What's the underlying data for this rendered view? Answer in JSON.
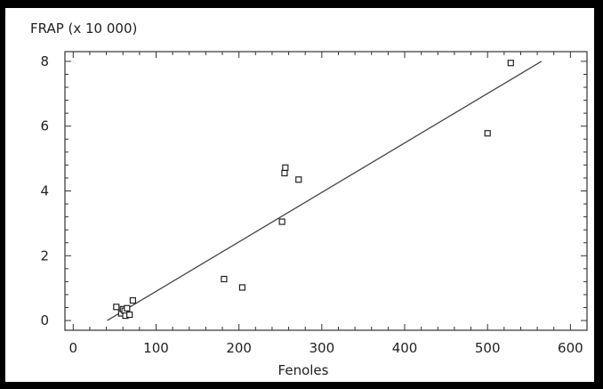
{
  "chart_data": {
    "type": "scatter",
    "title": "",
    "ylabel": "FRAP (x 10 000)",
    "xlabel": "Fenoles",
    "xlim": [
      -10,
      620
    ],
    "ylim": [
      -0.3,
      8.3
    ],
    "xticks": [
      0,
      100,
      200,
      300,
      400,
      500,
      600
    ],
    "yticks": [
      0,
      2,
      4,
      6,
      8
    ],
    "grid": false,
    "legend": "none",
    "marker": "open-square",
    "colors": {
      "points": "#222222",
      "axes": "#333333",
      "fit_line": "#444444"
    },
    "points": [
      {
        "x": 52,
        "y": 0.42
      },
      {
        "x": 58,
        "y": 0.22
      },
      {
        "x": 60,
        "y": 0.35
      },
      {
        "x": 62,
        "y": 0.3
      },
      {
        "x": 63,
        "y": 0.15
      },
      {
        "x": 65,
        "y": 0.38
      },
      {
        "x": 68,
        "y": 0.18
      },
      {
        "x": 72,
        "y": 0.62
      },
      {
        "x": 182,
        "y": 1.28
      },
      {
        "x": 204,
        "y": 1.02
      },
      {
        "x": 252,
        "y": 3.05
      },
      {
        "x": 255,
        "y": 4.55
      },
      {
        "x": 256,
        "y": 4.72
      },
      {
        "x": 272,
        "y": 4.35
      },
      {
        "x": 500,
        "y": 5.78
      },
      {
        "x": 528,
        "y": 7.95
      }
    ],
    "fit_line": {
      "x": [
        41,
        565
      ],
      "y": [
        0.0,
        8.0
      ]
    }
  }
}
